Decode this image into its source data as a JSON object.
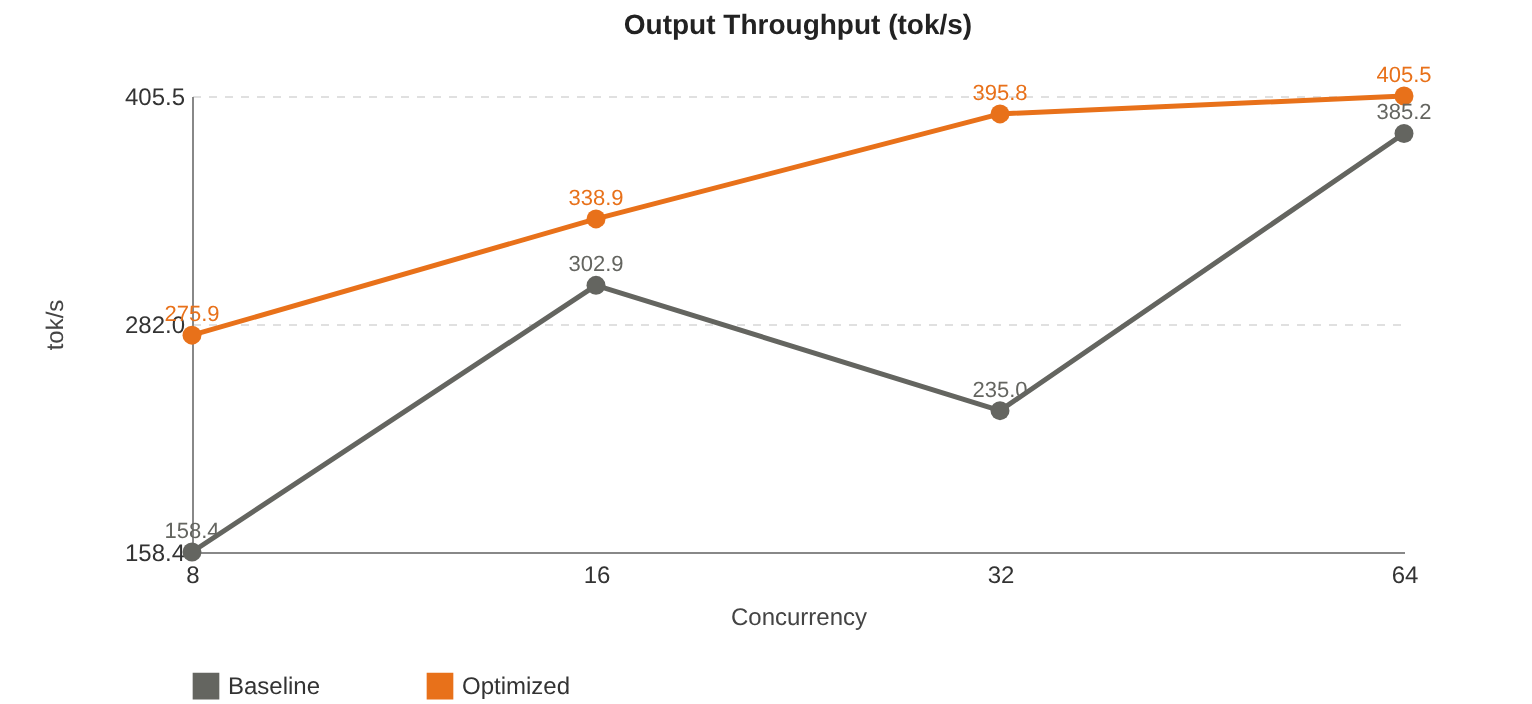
{
  "chart_data": {
    "type": "line",
    "title": "Output Throughput (tok/s)",
    "xlabel": "Concurrency",
    "ylabel": "tok/s",
    "categories": [
      "8",
      "16",
      "32",
      "64"
    ],
    "series": [
      {
        "name": "Baseline",
        "color": "#646560",
        "values": [
          158.4,
          302.9,
          235.0,
          385.2
        ],
        "value_labels": [
          "158.4",
          "302.9",
          "235.0",
          "385.2"
        ]
      },
      {
        "name": "Optimized",
        "color": "#e8711a",
        "values": [
          275.9,
          338.9,
          395.8,
          405.5
        ],
        "value_labels": [
          "275.9",
          "338.9",
          "395.8",
          "405.5"
        ]
      }
    ],
    "ylim": [
      158.4,
      405.5
    ],
    "yticks": [
      158.4,
      {
        "value": 282,
        "label": "282.0"
      },
      405.5
    ],
    "grid": "y",
    "legend": "bottom",
    "marker": "circle",
    "line_style": "solid"
  }
}
